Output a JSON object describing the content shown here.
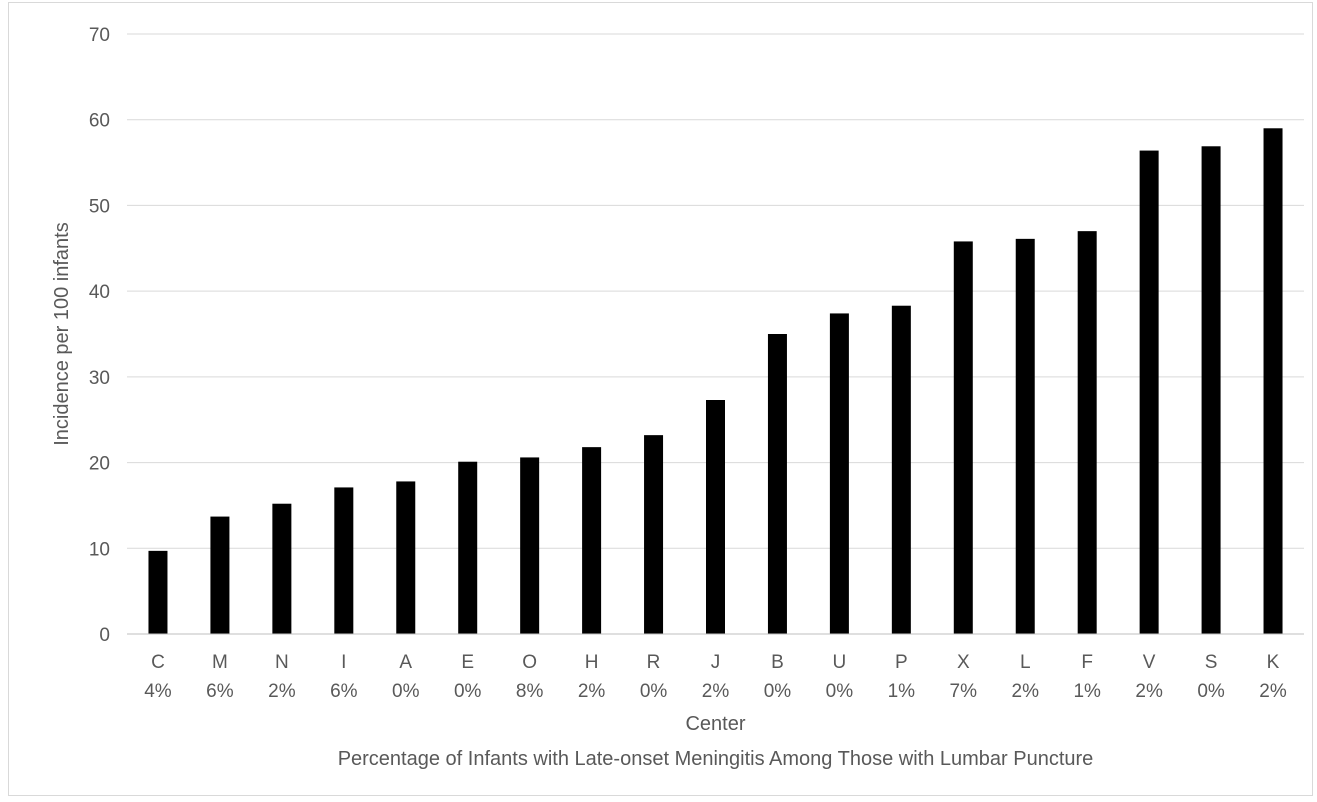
{
  "chart_data": {
    "type": "bar",
    "title": "",
    "ylabel": "Incidence per 100 infants",
    "xlabel": "Center",
    "xlabel_secondary": "Percentage of Infants with Late-onset Meningitis Among Those with Lumbar Puncture",
    "ylim": [
      0,
      70
    ],
    "yticks": [
      "0",
      "10",
      "20",
      "30",
      "40",
      "50",
      "60",
      "70"
    ],
    "grid": true,
    "legend": "none",
    "bar_color": "#000000",
    "categories": [
      "C",
      "M",
      "N",
      "I",
      "A",
      "E",
      "O",
      "H",
      "R",
      "J",
      "B",
      "U",
      "P",
      "X",
      "L",
      "F",
      "V",
      "S",
      "K"
    ],
    "percentages": [
      "4%",
      "6%",
      "2%",
      "6%",
      "0%",
      "0%",
      "8%",
      "2%",
      "0%",
      "2%",
      "0%",
      "0%",
      "1%",
      "7%",
      "2%",
      "1%",
      "2%",
      "0%",
      "2%"
    ],
    "values": [
      9.7,
      13.7,
      15.2,
      17.1,
      17.8,
      20.1,
      20.6,
      21.8,
      23.2,
      27.3,
      35.0,
      37.4,
      38.3,
      45.8,
      46.1,
      47.0,
      56.4,
      56.9,
      59.0
    ]
  }
}
